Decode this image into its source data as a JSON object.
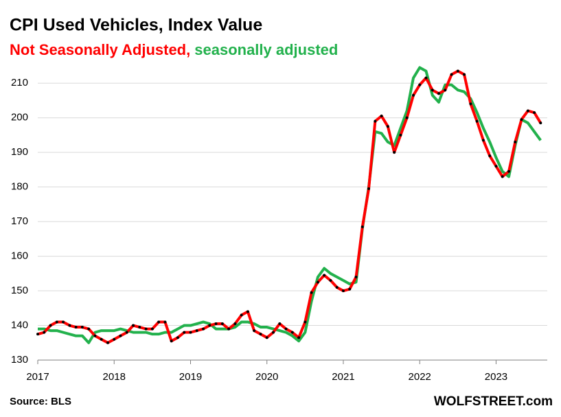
{
  "chart_data": {
    "type": "line",
    "title": "CPI Used Vehicles, Index Value",
    "source": "Source: BLS",
    "watermark": "WOLFSTREET.com",
    "x": [
      2017,
      2017.083,
      2017.167,
      2017.25,
      2017.333,
      2017.417,
      2017.5,
      2017.583,
      2017.667,
      2017.75,
      2017.833,
      2017.917,
      2018,
      2018.083,
      2018.167,
      2018.25,
      2018.333,
      2018.417,
      2018.5,
      2018.583,
      2018.667,
      2018.75,
      2018.833,
      2018.917,
      2019,
      2019.083,
      2019.167,
      2019.25,
      2019.333,
      2019.417,
      2019.5,
      2019.583,
      2019.667,
      2019.75,
      2019.833,
      2019.917,
      2020,
      2020.083,
      2020.167,
      2020.25,
      2020.333,
      2020.417,
      2020.5,
      2020.583,
      2020.667,
      2020.75,
      2020.833,
      2020.917,
      2021,
      2021.083,
      2021.167,
      2021.25,
      2021.333,
      2021.417,
      2021.5,
      2021.583,
      2021.667,
      2021.75,
      2021.833,
      2021.917,
      2022,
      2022.083,
      2022.167,
      2022.25,
      2022.333,
      2022.417,
      2022.5,
      2022.583,
      2022.667,
      2022.75,
      2022.833,
      2022.917,
      2023,
      2023.083,
      2023.167,
      2023.25,
      2023.333,
      2023.417,
      2023.5,
      2023.583
    ],
    "series": [
      {
        "name": "seasonally adjusted",
        "color": "#22b14c",
        "markers": false,
        "values": [
          139,
          139,
          138.5,
          138.5,
          138,
          137.5,
          137,
          137,
          135,
          138,
          138.5,
          138.5,
          138.5,
          139,
          138.5,
          138,
          138,
          138,
          137.5,
          137.5,
          138,
          138,
          139,
          140,
          140,
          140.5,
          141,
          140.5,
          139,
          139,
          139,
          139.5,
          141,
          141,
          140.5,
          139.5,
          139.5,
          139,
          138.5,
          138,
          137,
          135.5,
          138,
          147,
          154,
          156.5,
          155,
          154,
          153,
          152,
          152.5,
          168,
          180,
          196,
          195.5,
          193,
          192,
          197,
          202,
          211.5,
          214.5,
          213.5,
          206.5,
          204.5,
          209.5,
          209.5,
          208,
          207.5,
          205.5,
          201.5,
          197,
          193,
          188.5,
          184.5,
          183,
          192,
          199.5,
          198.5,
          196,
          193.5
        ]
      },
      {
        "name": "Not Seasonally Adjusted,",
        "color": "#ff0000",
        "markers": true,
        "marker_color": "#000000",
        "values": [
          137.5,
          138,
          140,
          141,
          141,
          140,
          139.5,
          139.5,
          139,
          137,
          136,
          135,
          136,
          137,
          138,
          140,
          139.5,
          139,
          139,
          141,
          141,
          135.5,
          136.5,
          138,
          138,
          138.5,
          139,
          140,
          140.5,
          140.5,
          139,
          140.5,
          143,
          144,
          138.5,
          137.5,
          136.5,
          138,
          140.5,
          139,
          138,
          136.5,
          141,
          149.5,
          152.5,
          154.5,
          153,
          151,
          150,
          150.5,
          154,
          168.5,
          179.5,
          199,
          200.5,
          197.5,
          190,
          195,
          200,
          206.5,
          209.5,
          211.5,
          208,
          207,
          208,
          212.5,
          213.5,
          212.5,
          204,
          199,
          193.5,
          189,
          186,
          183,
          184.5,
          193,
          199.5,
          202,
          201.5,
          198.5
        ]
      }
    ],
    "xlim": [
      2017,
      2023.67
    ],
    "xticks": [
      2017,
      2018,
      2019,
      2020,
      2021,
      2022,
      2023
    ],
    "ylim": [
      130,
      215
    ],
    "yticks": [
      130,
      140,
      150,
      160,
      170,
      180,
      190,
      200,
      210
    ],
    "grid": true
  }
}
